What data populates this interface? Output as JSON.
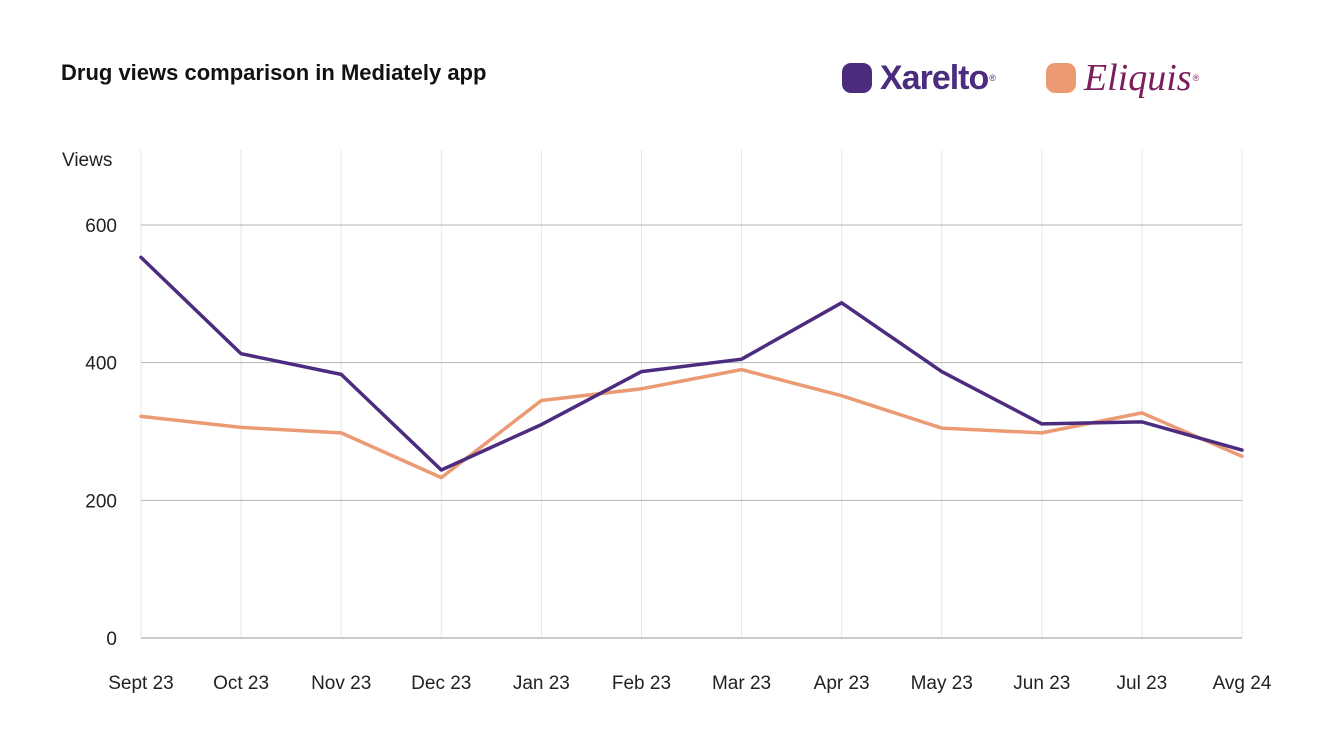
{
  "title": "Drug views comparison in Mediately app",
  "legend": [
    {
      "label": "Xarelto",
      "color": "#4b2c7f",
      "text_color": "#4b2c7f"
    },
    {
      "label": "Eliquis",
      "color": "#ec9a73",
      "text_color": "#7a1f5c"
    }
  ],
  "chart_data": {
    "type": "line",
    "title": "Drug views comparison in Mediately app",
    "ylabel": "Views",
    "xlabel": "",
    "ylim": [
      0,
      600
    ],
    "yticks": [
      0,
      200,
      400,
      600
    ],
    "grid": true,
    "legend_position": "top-right",
    "categories": [
      "Sept 23",
      "Oct 23",
      "Nov 23",
      "Dec 23",
      "Jan 23",
      "Feb 23",
      "Mar 23",
      "Apr 23",
      "May 23",
      "Jun 23",
      "Jul 23",
      "Avg 24"
    ],
    "series": [
      {
        "name": "Xarelto",
        "color": "#4b2c7f",
        "values": [
          553,
          413,
          383,
          244,
          310,
          387,
          405,
          487,
          387,
          311,
          314,
          273
        ]
      },
      {
        "name": "Eliquis",
        "color": "#ec9a73",
        "values": [
          322,
          306,
          298,
          233,
          345,
          362,
          390,
          352,
          305,
          298,
          327,
          264
        ]
      }
    ]
  }
}
